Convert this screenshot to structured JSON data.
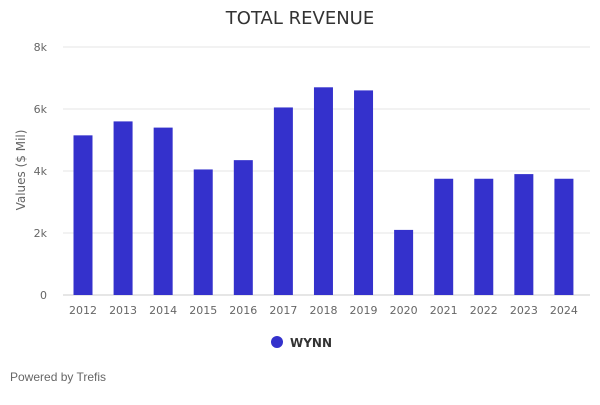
{
  "chart_data": {
    "type": "bar",
    "title": "TOTAL REVENUE",
    "xlabel": "",
    "ylabel": "Values ($ Mil)",
    "categories": [
      "2012",
      "2013",
      "2014",
      "2015",
      "2016",
      "2017",
      "2018",
      "2019",
      "2020",
      "2021",
      "2022",
      "2023",
      "2024"
    ],
    "series": [
      {
        "name": "WYNN",
        "values": [
          5150,
          5600,
          5400,
          4050,
          4350,
          6050,
          6700,
          6600,
          2100,
          3750,
          3750,
          3900,
          3750
        ]
      }
    ],
    "ylim": [
      0,
      8000
    ],
    "yticks": [
      0,
      2000,
      4000,
      6000,
      8000
    ],
    "ytick_labels": [
      "0",
      "2k",
      "4k",
      "6k",
      "8k"
    ],
    "grid": true,
    "legend_position": "bottom-center"
  },
  "colors": {
    "bar": "#3431cc",
    "grid": "#e6e6e6",
    "axis_text": "#666666",
    "title": "#333333"
  },
  "footer": {
    "credit": "Powered by Trefis"
  }
}
